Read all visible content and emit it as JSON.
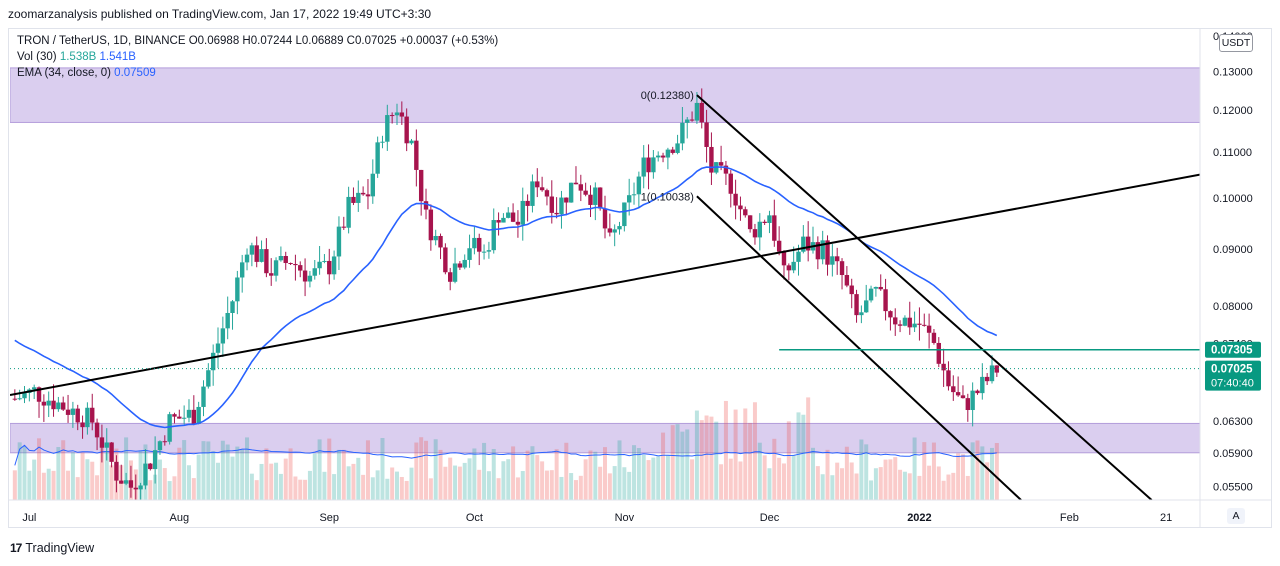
{
  "header": {
    "publisher": "zoomarzanalysis published on TradingView.com, Jan 17, 2022 19:49 UTC+3:30"
  },
  "legend": {
    "symbol": "TRON / TetherUS, 1D, BINANCE",
    "open": "O0.06988",
    "high": "H0.07244",
    "low": "L0.06889",
    "close": "C0.07025",
    "change": "+0.00037 (+0.53%)",
    "vol_label": "Vol (30)",
    "vol_value_1": "1.538B",
    "vol_value_2": "1.541B",
    "ema_label": "EMA (34, close, 0)",
    "ema_value": "0.07509"
  },
  "currency_button": "USDT",
  "auto_button": "A",
  "footer": {
    "logo": "17",
    "brand": "TradingView"
  },
  "chart_data": {
    "type": "candlestick",
    "symbol": "TRON / TetherUS",
    "interval": "1D",
    "exchange": "BINANCE",
    "y_scale": "log",
    "ylim": [
      0.0535,
      0.142
    ],
    "y_ticks": [
      "0.14000",
      "0.13000",
      "0.12000",
      "0.11000",
      "0.10000",
      "0.09000",
      "0.08000",
      "0.07400",
      "0.06300",
      "0.05900",
      "0.05500"
    ],
    "x_ticks": [
      "Jul",
      "Aug",
      "Sep",
      "Oct",
      "Nov",
      "Dec",
      "2022",
      "Feb",
      "21"
    ],
    "xlim": [
      "2021-06-27",
      "2022-02-28"
    ],
    "x_tick_dates": [
      "2021-07-01",
      "2021-08-01",
      "2021-09-01",
      "2021-10-01",
      "2021-11-01",
      "2021-12-01",
      "2022-01-01",
      "2022-02-01",
      "2022-02-21"
    ],
    "price_labels": [
      {
        "label": "0.07305",
        "value": 0.07305,
        "color": "#089981"
      },
      {
        "label": "0.07025",
        "value": 0.07025,
        "color": "#089981",
        "countdown": "07:40:40"
      }
    ],
    "zones": [
      {
        "low": 0.117,
        "high": 0.131,
        "color": "#d4c5ec"
      },
      {
        "low": 0.059,
        "high": 0.0627,
        "color": "#d4c5ec"
      }
    ],
    "horizontal_line": {
      "value": 0.07305,
      "from": "2021-12-03",
      "color": "#089981"
    },
    "fib_labels": [
      {
        "text": "0(0.12380)",
        "value": 0.1238,
        "date": "2021-11-16"
      },
      {
        "text": "1(0.10038)",
        "value": 0.10038,
        "date": "2021-11-16"
      }
    ],
    "trendlines": [
      {
        "from": [
          "2021-06-27",
          0.0665
        ],
        "to": [
          "2022-02-28",
          0.105
        ]
      },
      {
        "from": [
          "2021-11-16",
          0.1238
        ],
        "to": [
          "2022-02-18",
          0.0535
        ]
      },
      {
        "from": [
          "2021-11-16",
          0.1004
        ],
        "to": [
          "2022-01-22",
          0.0535
        ]
      }
    ],
    "ohlc_anchors": [
      [
        "2021-06-28",
        0.066
      ],
      [
        "2021-07-02",
        0.067
      ],
      [
        "2021-07-08",
        0.065
      ],
      [
        "2021-07-14",
        0.063
      ],
      [
        "2021-07-19",
        0.0565
      ],
      [
        "2021-07-22",
        0.055
      ],
      [
        "2021-07-26",
        0.058
      ],
      [
        "2021-07-30",
        0.063
      ],
      [
        "2021-08-04",
        0.064
      ],
      [
        "2021-08-08",
        0.072
      ],
      [
        "2021-08-12",
        0.081
      ],
      [
        "2021-08-15",
        0.091
      ],
      [
        "2021-08-20",
        0.086
      ],
      [
        "2021-08-24",
        0.088
      ],
      [
        "2021-08-28",
        0.085
      ],
      [
        "2021-09-01",
        0.087
      ],
      [
        "2021-09-05",
        0.098
      ],
      [
        "2021-09-09",
        0.101
      ],
      [
        "2021-09-12",
        0.115
      ],
      [
        "2021-09-15",
        0.121
      ],
      [
        "2021-09-18",
        0.112
      ],
      [
        "2021-09-21",
        0.096
      ],
      [
        "2021-09-26",
        0.086
      ],
      [
        "2021-09-30",
        0.091
      ],
      [
        "2021-10-03",
        0.089
      ],
      [
        "2021-10-06",
        0.097
      ],
      [
        "2021-10-10",
        0.095
      ],
      [
        "2021-10-14",
        0.104
      ],
      [
        "2021-10-18",
        0.098
      ],
      [
        "2021-10-22",
        0.104
      ],
      [
        "2021-10-26",
        0.1
      ],
      [
        "2021-10-29",
        0.091
      ],
      [
        "2021-11-02",
        0.099
      ],
      [
        "2021-11-05",
        0.107
      ],
      [
        "2021-11-08",
        0.11
      ],
      [
        "2021-11-12",
        0.113
      ],
      [
        "2021-11-16",
        0.121
      ],
      [
        "2021-11-19",
        0.106
      ],
      [
        "2021-11-23",
        0.103
      ],
      [
        "2021-11-27",
        0.093
      ],
      [
        "2021-12-01",
        0.097
      ],
      [
        "2021-12-04",
        0.085
      ],
      [
        "2021-12-08",
        0.091
      ],
      [
        "2021-12-12",
        0.09
      ],
      [
        "2021-12-16",
        0.085
      ],
      [
        "2021-12-19",
        0.078
      ],
      [
        "2021-12-23",
        0.082
      ],
      [
        "2021-12-27",
        0.078
      ],
      [
        "2022-01-01",
        0.077
      ],
      [
        "2022-01-04",
        0.074
      ],
      [
        "2022-01-07",
        0.068
      ],
      [
        "2022-01-10",
        0.065
      ],
      [
        "2022-01-13",
        0.067
      ],
      [
        "2022-01-17",
        0.0702
      ]
    ],
    "volume_series": {
      "name": "Vol (30)",
      "up_color": "#26a69a",
      "down_color": "#ef5350"
    },
    "ema_series": {
      "name": "EMA (34, close, 0)",
      "color": "#2962ff",
      "last": 0.07509
    }
  }
}
